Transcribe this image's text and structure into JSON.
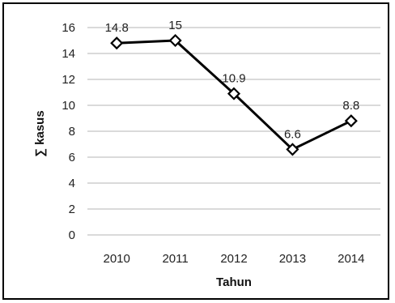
{
  "chart_data": {
    "type": "line",
    "title": "",
    "xlabel": "Tahun",
    "ylabel": "∑ kasus",
    "categories": [
      "2010",
      "2011",
      "2012",
      "2013",
      "2014"
    ],
    "series": [
      {
        "values": [
          14.8,
          15,
          10.9,
          6.6,
          8.8
        ],
        "data_labels": [
          "14.8",
          "15",
          "10.9",
          "6.6",
          "8.8"
        ],
        "color": "#000000",
        "marker": "diamond"
      }
    ],
    "ylim": [
      0,
      16
    ],
    "yticks": [
      "0",
      "2",
      "4",
      "6",
      "8",
      "10",
      "12",
      "14",
      "16"
    ],
    "grid": true,
    "gridline_color": "#b5b5b5",
    "legend": "none"
  }
}
